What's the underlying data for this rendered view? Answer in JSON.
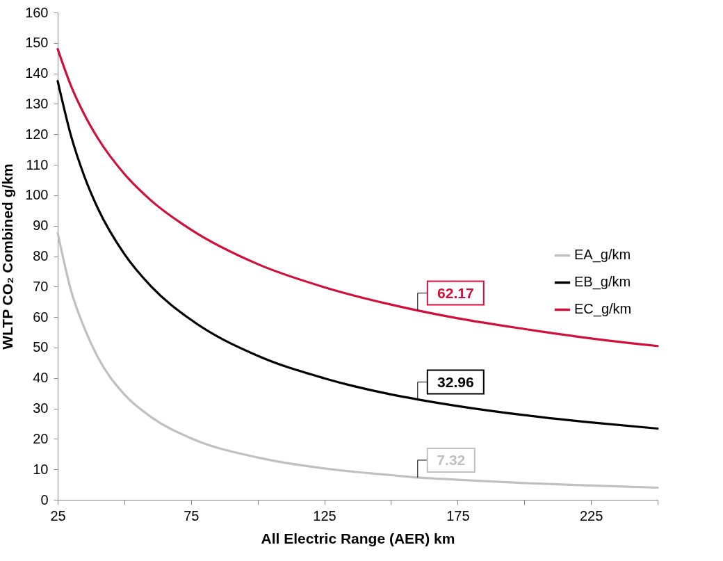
{
  "chart_data": {
    "type": "line",
    "xlabel": "All Electric Range (AER) km",
    "ylabel": "WLTP CO₂ Combined g/km",
    "x": [
      25,
      30,
      35,
      40,
      50,
      60,
      75,
      100,
      125,
      150,
      160,
      175,
      200,
      225,
      250
    ],
    "series": [
      {
        "name": "EA_g/km",
        "color": "#c0c0c0",
        "values": [
          87.7,
          68.7,
          56.4,
          46.9,
          34.6,
          27.2,
          20.2,
          13.9,
          10.3,
          8.1,
          7.32,
          6.6,
          5.5,
          4.7,
          4.0
        ],
        "value_labels": [
          null,
          null,
          null,
          null,
          null,
          null,
          null,
          null,
          null,
          null,
          "7.32",
          null,
          null,
          null,
          null
        ]
      },
      {
        "name": "EB_g/km",
        "color": "#000000",
        "values": [
          137.5,
          119.5,
          106.2,
          95.8,
          80.7,
          70.1,
          59.1,
          47.3,
          39.9,
          34.6,
          32.96,
          30.8,
          27.8,
          25.4,
          23.4
        ],
        "value_labels": [
          null,
          null,
          null,
          null,
          null,
          null,
          null,
          null,
          null,
          null,
          "32.96",
          null,
          null,
          null,
          null
        ]
      },
      {
        "name": "EC_g/km",
        "color": "#d0103a",
        "values": [
          148,
          135.9,
          126.5,
          118.8,
          107,
          98.3,
          88.7,
          77.4,
          69.8,
          64.1,
          62.17,
          59.6,
          56.1,
          53.0,
          50.5
        ],
        "value_labels": [
          null,
          null,
          null,
          null,
          null,
          null,
          null,
          null,
          null,
          null,
          "62.17",
          null,
          null,
          null,
          null
        ]
      }
    ],
    "xlim": [
      25,
      250
    ],
    "xticks": [
      25,
      {
        "value": 50,
        "label": null
      },
      75,
      {
        "value": 100,
        "label": null
      },
      125,
      {
        "value": 150,
        "label": null
      },
      175,
      {
        "value": 200,
        "label": null
      },
      225,
      {
        "value": 250,
        "label": null
      }
    ],
    "ylim": [
      0,
      160
    ],
    "yticks": [
      0,
      10,
      20,
      30,
      40,
      50,
      60,
      70,
      80,
      90,
      100,
      110,
      120,
      130,
      140,
      150,
      160
    ],
    "grid": false,
    "legend": "right"
  }
}
